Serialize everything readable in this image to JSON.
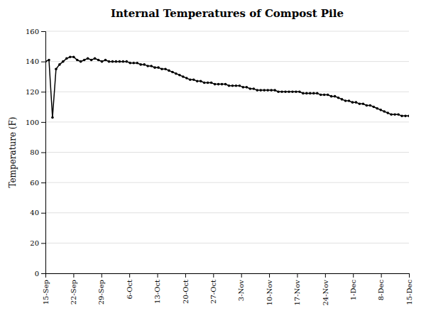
{
  "chart_data": {
    "type": "line",
    "title": "Internal Temperatures of Compost Pile",
    "ylabel": "Temperature (F)",
    "color": "#000000",
    "marker": "point",
    "grid": "y",
    "xlim": [
      0,
      91
    ],
    "xticks": [
      {
        "value": 0,
        "label": "15-Sep"
      },
      {
        "value": 7,
        "label": "22-Sep"
      },
      {
        "value": 14,
        "label": "29-Sep"
      },
      {
        "value": 21,
        "label": "6-Oct"
      },
      {
        "value": 28,
        "label": "13-Oct"
      },
      {
        "value": 35,
        "label": "20-Oct"
      },
      {
        "value": 42,
        "label": "27-Oct"
      },
      {
        "value": 49,
        "label": "3-Nov"
      },
      {
        "value": 56,
        "label": "10-Nov"
      },
      {
        "value": 63,
        "label": "17-Nov"
      },
      {
        "value": 70,
        "label": "24-Nov"
      },
      {
        "value": 77,
        "label": "1-Dec"
      },
      {
        "value": 84,
        "label": "8-Dec"
      },
      {
        "value": 91,
        "label": "15-Dec"
      }
    ],
    "ylim": [
      0,
      160
    ],
    "yticks": [
      0,
      20,
      40,
      60,
      80,
      100,
      120,
      140,
      160
    ],
    "x": [
      0,
      0.8835,
      1.767,
      2.6505,
      3.534,
      4.4175,
      5.301,
      6.1845,
      7.068,
      7.9515,
      8.835,
      9.7184,
      10.6019,
      11.4854,
      12.3689,
      13.2524,
      14.1359,
      15.0194,
      15.9029,
      16.7864,
      17.6699,
      18.5534,
      19.4369,
      20.3204,
      21.2039,
      22.0874,
      22.9709,
      23.8544,
      24.7379,
      25.6214,
      26.5049,
      27.3883,
      28.2718,
      29.1553,
      30.0388,
      30.9223,
      31.8058,
      32.6893,
      33.5728,
      34.4563,
      35.3398,
      36.2233,
      37.1068,
      37.9903,
      38.8738,
      39.7573,
      40.6408,
      41.5243,
      42.4078,
      43.2913,
      44.1748,
      45.0583,
      45.9417,
      46.8252,
      47.7087,
      48.5922,
      49.4757,
      50.3592,
      51.2427,
      52.1262,
      53.0097,
      53.8932,
      54.7767,
      55.6602,
      56.5437,
      57.4272,
      58.3107,
      59.1942,
      60.0777,
      60.9612,
      61.8447,
      62.7282,
      63.6117,
      64.4951,
      65.3786,
      66.2621,
      67.1456,
      68.0291,
      68.9126,
      69.7961,
      70.6796,
      71.5631,
      72.4466,
      73.3301,
      74.2136,
      75.0971,
      75.9806,
      76.8641,
      77.7476,
      78.6311,
      79.5146,
      80.3981,
      81.2816,
      82.165,
      83.0485,
      83.932,
      84.8155,
      85.699,
      86.5825,
      87.466,
      88.3495,
      89.233,
      90.1165,
      91
    ],
    "values": [
      140,
      141,
      103,
      135,
      138,
      140,
      142,
      143,
      143,
      141,
      140,
      141,
      142,
      141,
      142,
      141,
      140,
      141,
      140,
      140,
      140,
      140,
      140,
      140,
      139,
      139,
      139,
      138,
      138,
      137,
      137,
      136,
      136,
      135,
      135,
      134,
      133,
      132,
      131,
      130,
      129,
      128,
      128,
      127,
      127,
      126,
      126,
      126,
      125,
      125,
      125,
      125,
      124,
      124,
      124,
      124,
      123,
      123,
      122,
      122,
      121,
      121,
      121,
      121,
      121,
      121,
      120,
      120,
      120,
      120,
      120,
      120,
      120,
      119,
      119,
      119,
      119,
      119,
      118,
      118,
      118,
      117,
      117,
      116,
      115,
      114,
      114,
      113,
      113,
      112,
      112,
      111,
      111,
      110,
      109,
      108,
      107,
      106,
      105,
      105,
      105,
      104,
      104,
      104
    ]
  }
}
